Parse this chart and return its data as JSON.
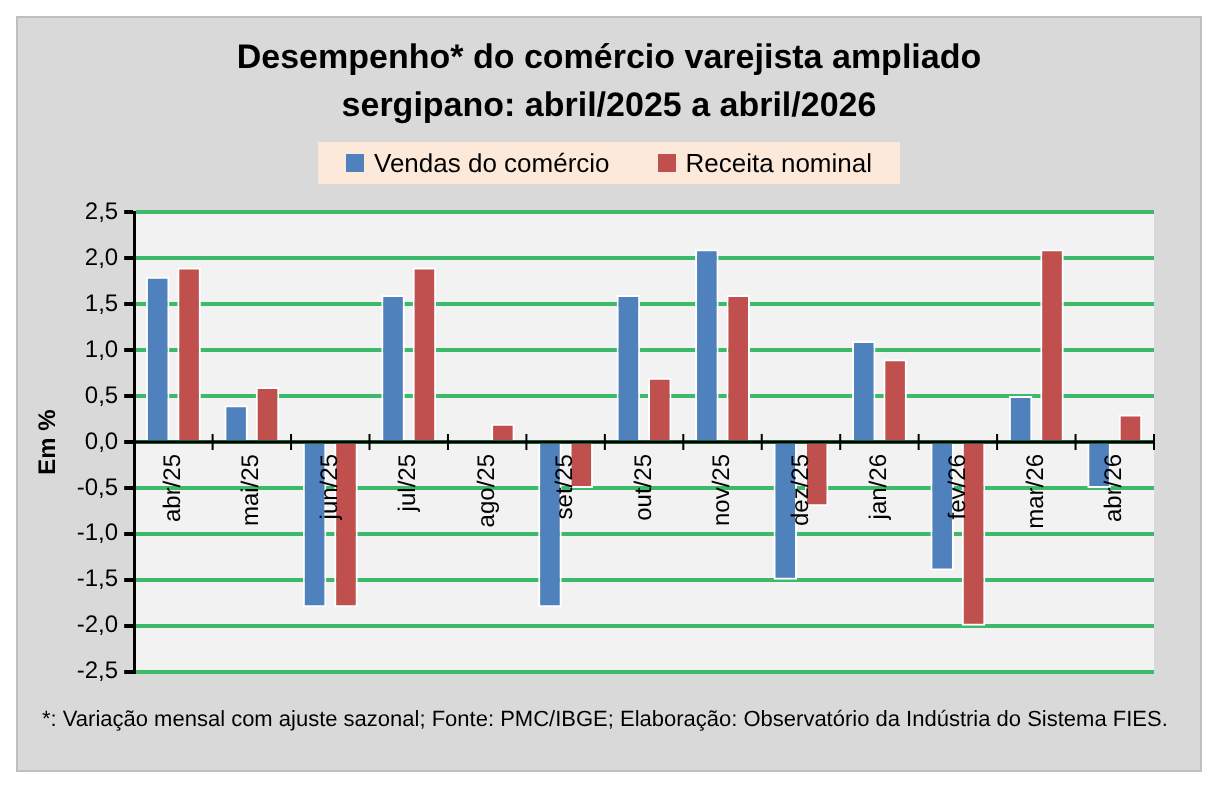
{
  "chart_data": {
    "type": "bar",
    "title": "Desempenho* do comércio varejista ampliado sergipano: abril/2025 a abril/2026",
    "ylabel": "Em %",
    "categories": [
      "abr/25",
      "mai/25",
      "jun/25",
      "jul/25",
      "ago/25",
      "set/25",
      "out/25",
      "nov/25",
      "dez/25",
      "jan/26",
      "fev/26",
      "mar/26",
      "abr/26"
    ],
    "series": [
      {
        "name": "Vendas do comércio",
        "color": "#4f81bd",
        "values": [
          1.8,
          0.4,
          -1.8,
          1.6,
          0,
          -1.8,
          1.6,
          2.1,
          -1.5,
          1.1,
          -1.4,
          0.5,
          -0.5
        ]
      },
      {
        "name": "Receita nominal",
        "color": "#c0504d",
        "values": [
          1.9,
          0.6,
          -1.8,
          1.9,
          0.2,
          -0.5,
          0.7,
          1.6,
          -0.7,
          0.9,
          -2.0,
          2.1,
          0.3
        ]
      }
    ],
    "ylim": [
      -2.5,
      2.5
    ],
    "yticks": [
      {
        "value": -2.5,
        "label": "-2,5"
      },
      {
        "value": -2,
        "label": "-2,0"
      },
      {
        "value": -1.5,
        "label": "-1,5"
      },
      {
        "value": -1,
        "label": "-1,0"
      },
      {
        "value": -0.5,
        "label": "-0,5"
      },
      {
        "value": 0,
        "label": "0,0"
      },
      {
        "value": 0.5,
        "label": "0,5"
      },
      {
        "value": 1,
        "label": "1,0"
      },
      {
        "value": 1.5,
        "label": "1,5"
      },
      {
        "value": 2,
        "label": "2,0"
      },
      {
        "value": 2.5,
        "label": "2,5"
      }
    ],
    "grid": "y",
    "legend": "top",
    "annotations": [
      "*: Variação mensal com ajuste sazonal; Fonte: PMC/IBGE; Elaboração: Observatório da Indústria do Sistema FIES."
    ]
  }
}
